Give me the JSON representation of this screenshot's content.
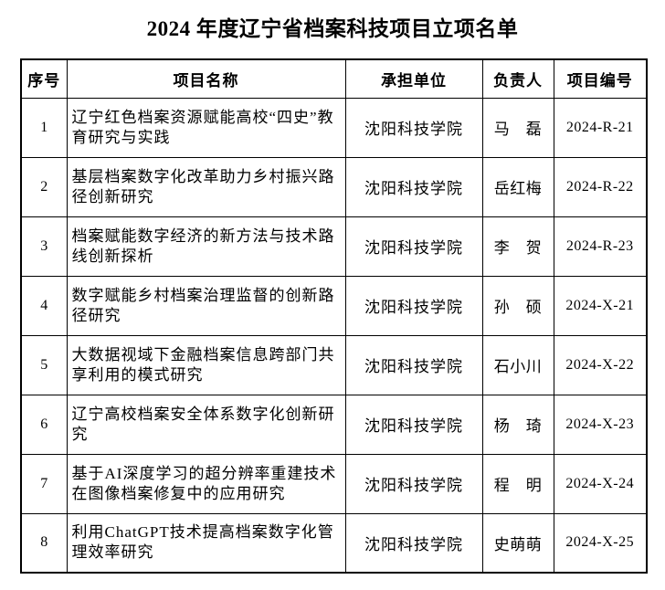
{
  "page": {
    "title": "2024 年度辽宁省档案科技项目立项名单"
  },
  "table": {
    "headers": [
      "序号",
      "项目名称",
      "承担单位",
      "负责人",
      "项目编号"
    ],
    "rows": [
      {
        "no": "1",
        "name": "辽宁红色档案资源赋能高校“四史”教育研究与实践",
        "unit": "沈阳科技学院",
        "leader": "马　磊",
        "code": "2024-R-21"
      },
      {
        "no": "2",
        "name": "基层档案数字化改革助力乡村振兴路径创新研究",
        "unit": "沈阳科技学院",
        "leader": "岳红梅",
        "code": "2024-R-22"
      },
      {
        "no": "3",
        "name": "档案赋能数字经济的新方法与技术路线创新探析",
        "unit": "沈阳科技学院",
        "leader": "李　贺",
        "code": "2024-R-23"
      },
      {
        "no": "4",
        "name": "数字赋能乡村档案治理监督的创新路径研究",
        "unit": "沈阳科技学院",
        "leader": "孙　硕",
        "code": "2024-X-21"
      },
      {
        "no": "5",
        "name": "大数据视域下金融档案信息跨部门共享利用的模式研究",
        "unit": "沈阳科技学院",
        "leader": "石小川",
        "code": "2024-X-22"
      },
      {
        "no": "6",
        "name": "辽宁高校档案安全体系数字化创新研究",
        "unit": "沈阳科技学院",
        "leader": "杨　琦",
        "code": "2024-X-23"
      },
      {
        "no": "7",
        "name": "基于AI深度学习的超分辨率重建技术在图像档案修复中的应用研究",
        "unit": "沈阳科技学院",
        "leader": "程　明",
        "code": "2024-X-24"
      },
      {
        "no": "8",
        "name": "利用ChatGPT技术提高档案数字化管理效率研究",
        "unit": "沈阳科技学院",
        "leader": "史萌萌",
        "code": "2024-X-25"
      }
    ]
  }
}
